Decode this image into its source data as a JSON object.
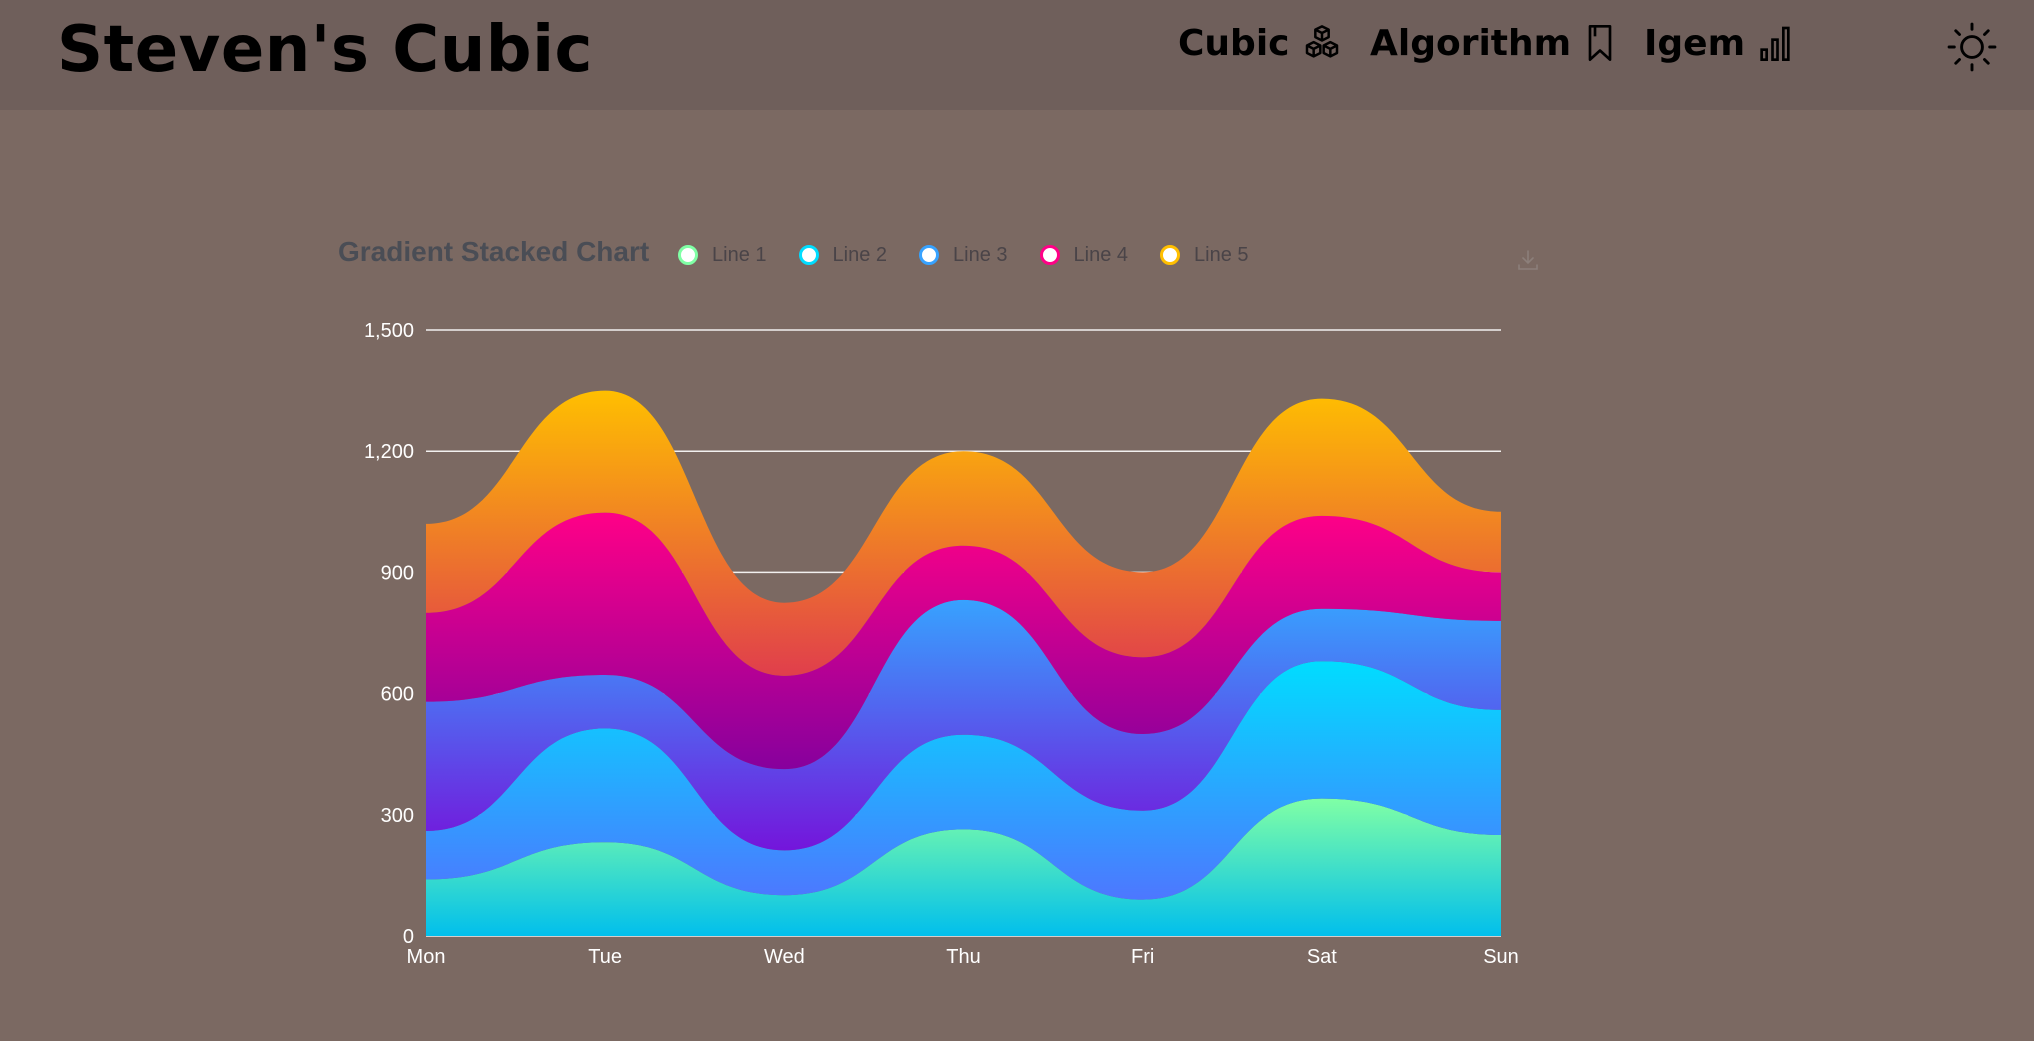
{
  "header": {
    "brand": "Steven's Cubic",
    "nav": [
      {
        "label": "Cubic",
        "icon": "cubes-icon"
      },
      {
        "label": "Algorithm",
        "icon": "bookmark-icon"
      },
      {
        "label": "Igem",
        "icon": "bar-chart-icon"
      }
    ],
    "theme_icon": "sun-icon"
  },
  "chart_data": {
    "type": "area",
    "stacked": true,
    "smooth": true,
    "title": "Gradient Stacked Chart",
    "categories": [
      "Mon",
      "Tue",
      "Wed",
      "Thu",
      "Fri",
      "Sat",
      "Sun"
    ],
    "ylim": [
      0,
      1500
    ],
    "yticks": [
      0,
      300,
      600,
      900,
      1200,
      1500
    ],
    "grid": true,
    "legend_position": "top",
    "series": [
      {
        "name": "Line 1",
        "values": [
          140,
          232,
          101,
          264,
          90,
          340,
          250
        ],
        "color": "#80FFA5",
        "gradient": [
          "#80FFA5",
          "#01BFEC"
        ]
      },
      {
        "name": "Line 2",
        "values": [
          120,
          282,
          111,
          234,
          220,
          340,
          310
        ],
        "color": "#00DDFF",
        "gradient": [
          "#00DDFF",
          "#4D77FF"
        ]
      },
      {
        "name": "Line 3",
        "values": [
          320,
          132,
          201,
          334,
          190,
          130,
          220
        ],
        "color": "#37A2FF",
        "gradient": [
          "#37A2FF",
          "#7415DB"
        ]
      },
      {
        "name": "Line 4",
        "values": [
          220,
          402,
          231,
          134,
          190,
          230,
          120
        ],
        "color": "#FF0087",
        "gradient": [
          "#FF0087",
          "#87009D"
        ]
      },
      {
        "name": "Line 5",
        "values": [
          220,
          302,
          181,
          234,
          210,
          290,
          150
        ],
        "color": "#FFBF00",
        "gradient": [
          "#FFBF00",
          "#E03E4C"
        ]
      }
    ]
  }
}
